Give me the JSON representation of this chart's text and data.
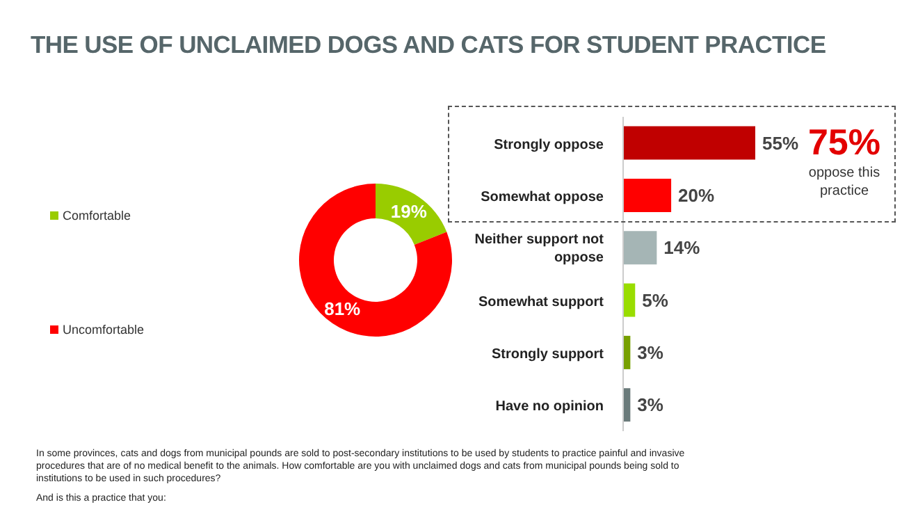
{
  "chart_data": [
    {
      "type": "donut",
      "title": "THE USE OF UNCLAIMED DOGS AND CATS FOR STUDENT PRACTICE",
      "categories": [
        "Comfortable",
        "Uncomfortable"
      ],
      "values": [
        19,
        81
      ],
      "colors": [
        "#99cc00",
        "#ff0000"
      ],
      "value_labels": [
        "19%",
        "81%"
      ],
      "legend": "left",
      "annotations": [
        "In some provinces, cats and dogs from municipal pounds are sold to post-secondary institutions to be used by students to practice painful and invasive procedures that are of no medical benefit to the animals. How comfortable are you with unclaimed dogs and cats from municipal pounds being sold to institutions to be used in such procedures?",
        "And is this a practice that you:"
      ]
    },
    {
      "type": "bar",
      "orientation": "horizontal",
      "categories": [
        "Strongly oppose",
        "Somewhat oppose",
        "Neither support not oppose",
        "Somewhat support",
        "Strongly support",
        "Have no opinion"
      ],
      "values": [
        55,
        20,
        14,
        5,
        3,
        3
      ],
      "colors": [
        "#c00000",
        "#ff0000",
        "#a5b5b5",
        "#99dd00",
        "#77a000",
        "#6a7a7a"
      ],
      "value_labels": [
        "55%",
        "20%",
        "14%",
        "5%",
        "3%",
        "3%"
      ],
      "tick_labels": "y",
      "annotations": [
        "75%",
        "oppose this practice"
      ]
    }
  ]
}
